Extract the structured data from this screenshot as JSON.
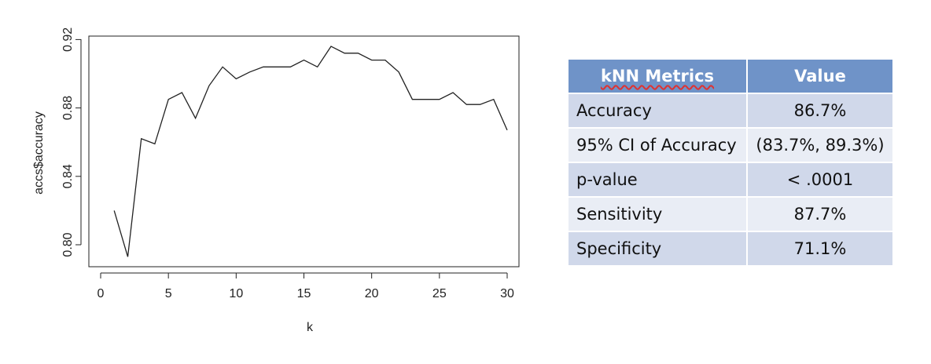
{
  "chart_data": {
    "type": "line",
    "title": "",
    "xlabel": "k",
    "ylabel": "accs$accuracy",
    "xlim": [
      1,
      30
    ],
    "ylim": [
      0.79,
      0.92
    ],
    "xticks": [
      0,
      5,
      10,
      15,
      20,
      25,
      30
    ],
    "yticks": [
      "0.80",
      "0.84",
      "0.88",
      "0.92"
    ],
    "grid": false,
    "series": [
      {
        "x": [
          1,
          2,
          3,
          4,
          5,
          6,
          7,
          8,
          9,
          10,
          11,
          12,
          13,
          14,
          15,
          16,
          17,
          18,
          19,
          20,
          21,
          22,
          23,
          24,
          25,
          26,
          27,
          28,
          29,
          30
        ],
        "y": [
          0.82,
          0.793,
          0.862,
          0.859,
          0.885,
          0.889,
          0.874,
          0.893,
          0.904,
          0.897,
          0.901,
          0.904,
          0.904,
          0.904,
          0.908,
          0.904,
          0.916,
          0.912,
          0.912,
          0.908,
          0.908,
          0.901,
          0.885,
          0.885,
          0.885,
          0.889,
          0.882,
          0.882,
          0.885,
          0.867
        ]
      }
    ]
  },
  "table": {
    "headers": [
      "kNN Metrics",
      "Value"
    ],
    "rows": [
      {
        "metric": "Accuracy",
        "value": "86.7%"
      },
      {
        "metric": "95% CI of Accuracy",
        "value": "(83.7%, 89.3%)"
      },
      {
        "metric": "p-value",
        "value": "< .0001"
      },
      {
        "metric": "Sensitivity",
        "value": "87.7%"
      },
      {
        "metric": "Specificity",
        "value": "71.1%"
      }
    ]
  }
}
